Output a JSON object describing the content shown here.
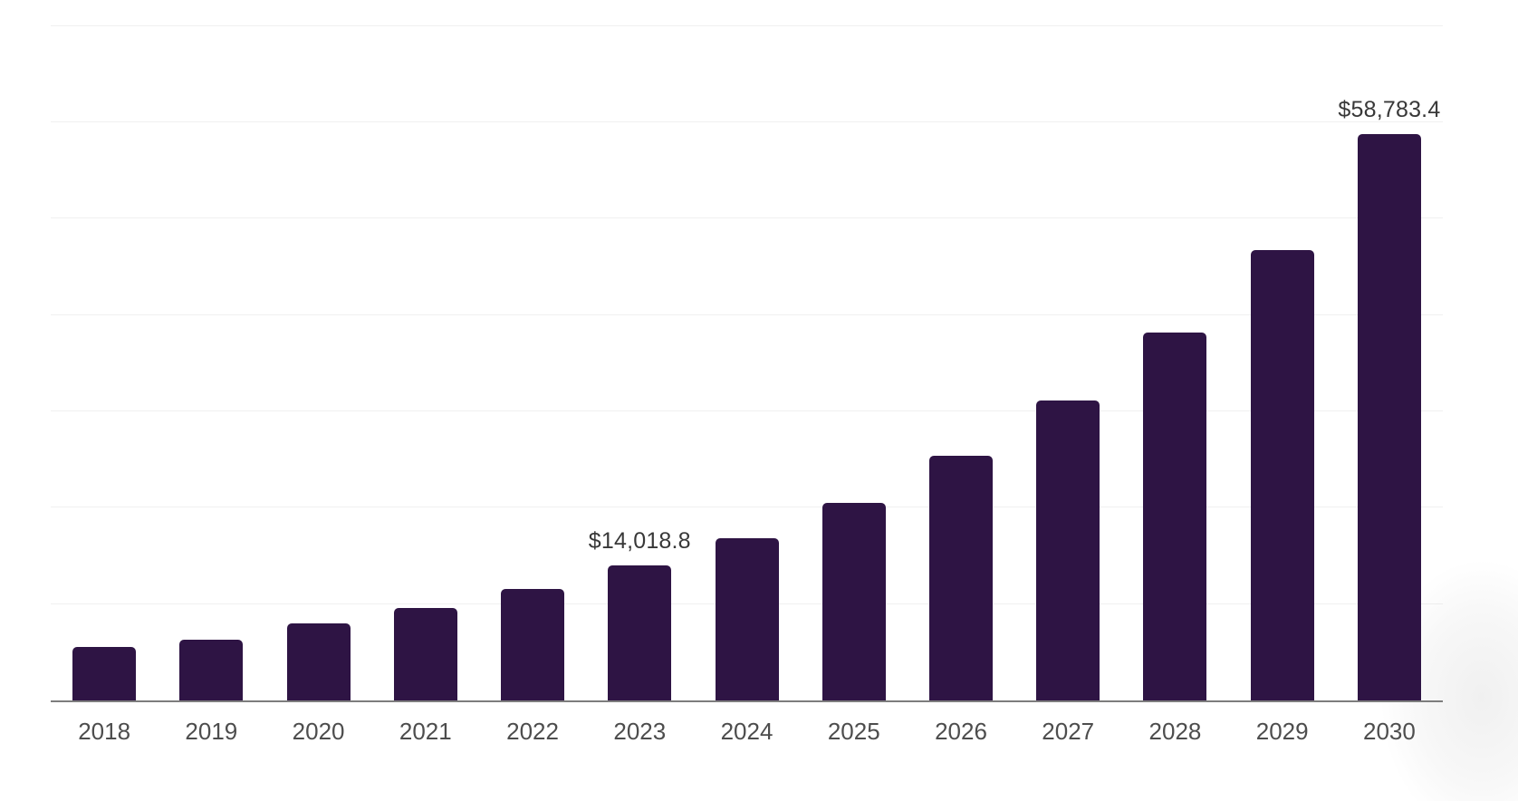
{
  "chart_data": {
    "type": "bar",
    "title": "",
    "xlabel": "",
    "ylabel": "",
    "categories": [
      "2018",
      "2019",
      "2020",
      "2021",
      "2022",
      "2023",
      "2024",
      "2025",
      "2026",
      "2027",
      "2028",
      "2029",
      "2030"
    ],
    "values": [
      5600,
      6300,
      8000,
      9600,
      11600,
      14018.8,
      16800,
      20500,
      25400,
      31100,
      38200,
      46800,
      58783.4
    ],
    "value_labels": [
      "",
      "",
      "",
      "",
      "",
      "$14,018.8",
      "",
      "",
      "",
      "",
      "",
      "",
      "$58,783.4"
    ],
    "ylim": [
      0,
      70830
    ],
    "gridline_interval": 10000,
    "grid": "horizontal",
    "legend_position": "none",
    "y_axis_tick_labels": "none",
    "colors": {
      "bar": "#2e1444",
      "grid": "#f0f0f0",
      "axis": "#7d7d7d",
      "tick_label": "#4d4d4d",
      "value_label": "#383838",
      "background": "#ffffff"
    }
  }
}
